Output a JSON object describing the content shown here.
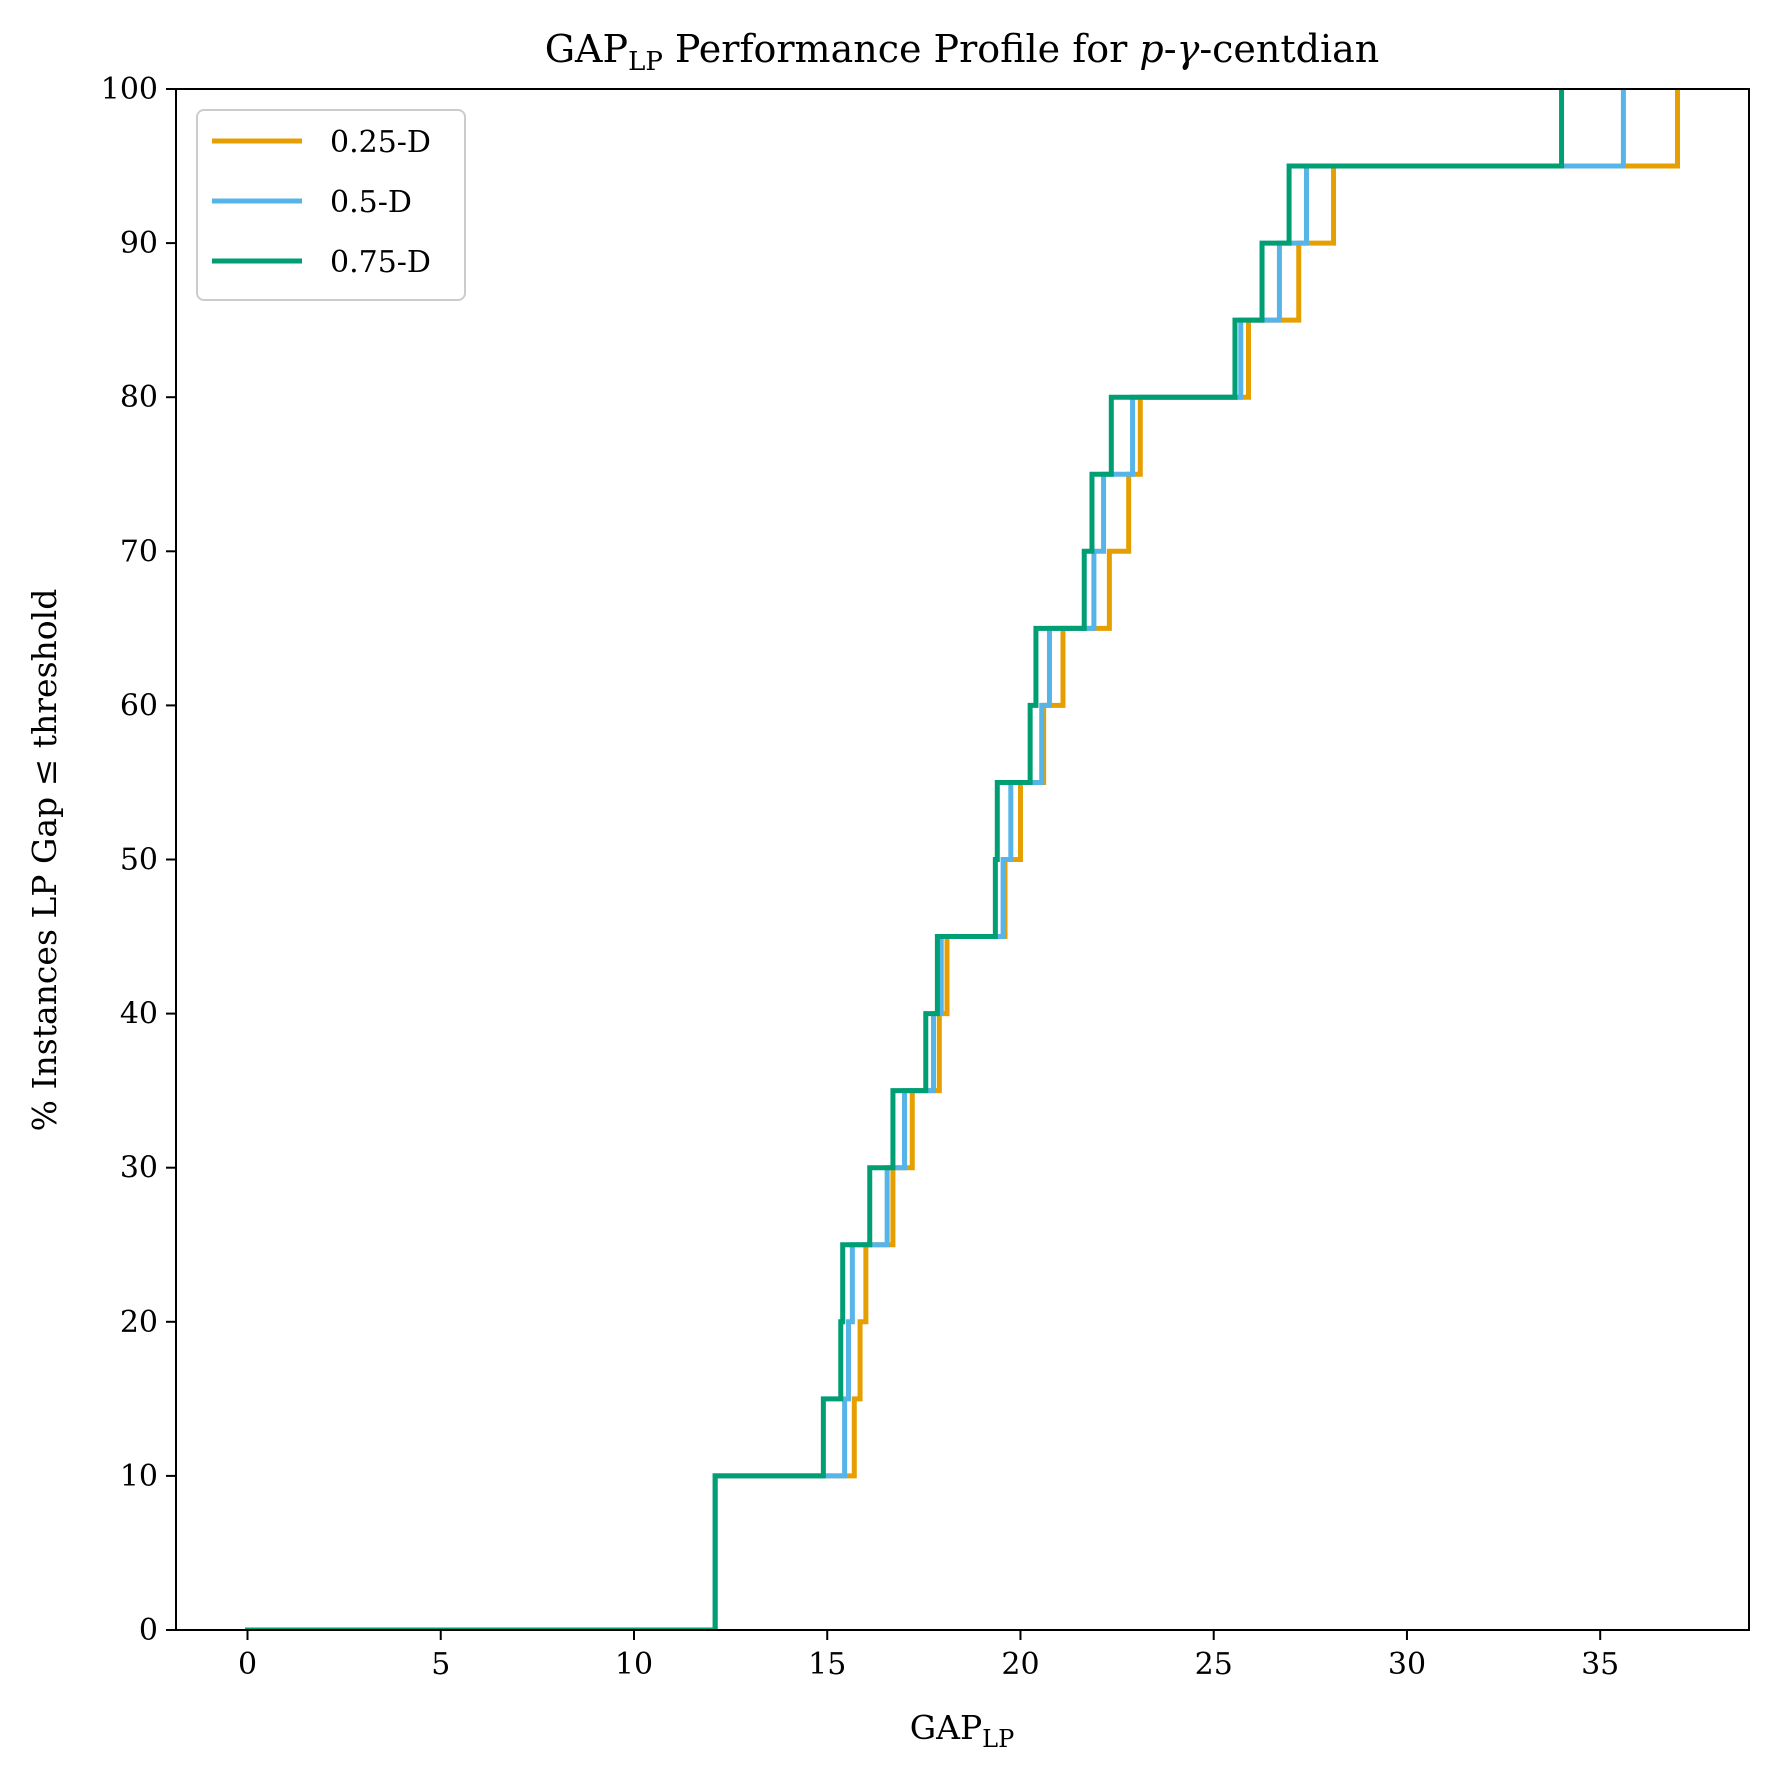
{
  "chart_data": {
    "type": "line",
    "step": "post",
    "title": {
      "prefix": "GAP",
      "prefix_sub": "LP",
      "middle": " Performance Profile for ",
      "italic1": "p",
      "dash": "-",
      "italic2": "γ",
      "suffix": "-centdian"
    },
    "xlabel": {
      "main": "GAP",
      "sub": "LP"
    },
    "ylabel": "% Instances LP Gap ≤ threshold",
    "xlim": [
      -1.85,
      38.85
    ],
    "ylim": [
      0,
      100
    ],
    "xticks": [
      0,
      5,
      10,
      15,
      20,
      25,
      30,
      35
    ],
    "yticks": [
      0,
      10,
      20,
      30,
      40,
      50,
      60,
      70,
      80,
      90,
      100
    ],
    "legend_position": "upper-left",
    "grid": false,
    "series": [
      {
        "name": "0.25-D",
        "color": "#E69F00",
        "x": [
          0,
          12.1,
          12.1,
          15.7,
          15.7,
          15.85,
          15.85,
          16.0,
          16.0,
          16.7,
          16.7,
          17.2,
          17.2,
          17.9,
          17.9,
          18.1,
          18.1,
          19.6,
          19.6,
          20.0,
          20.0,
          20.6,
          20.6,
          21.1,
          21.1,
          22.3,
          22.3,
          22.8,
          22.8,
          23.1,
          23.1,
          25.9,
          25.9,
          27.2,
          27.2,
          28.1,
          28.1,
          37.0,
          37.0
        ],
        "y": [
          0,
          0,
          10,
          10,
          15,
          15,
          20,
          20,
          25,
          25,
          30,
          30,
          35,
          35,
          40,
          40,
          45,
          45,
          50,
          50,
          55,
          55,
          60,
          60,
          65,
          65,
          70,
          70,
          75,
          75,
          80,
          80,
          85,
          85,
          90,
          90,
          95,
          95,
          100
        ]
      },
      {
        "name": "0.5-D",
        "color": "#56B4E9",
        "x": [
          0,
          12.1,
          12.1,
          15.45,
          15.45,
          15.55,
          15.55,
          15.65,
          15.65,
          16.55,
          16.55,
          17.0,
          17.0,
          17.75,
          17.75,
          17.95,
          17.95,
          19.55,
          19.55,
          19.75,
          19.75,
          20.55,
          20.55,
          20.75,
          20.75,
          21.9,
          21.9,
          22.15,
          22.15,
          22.9,
          22.9,
          25.7,
          25.7,
          26.7,
          26.7,
          27.4,
          27.4,
          35.6,
          35.6
        ],
        "y": [
          0,
          0,
          10,
          10,
          15,
          15,
          20,
          20,
          25,
          25,
          30,
          30,
          35,
          35,
          40,
          40,
          45,
          45,
          50,
          50,
          55,
          55,
          60,
          60,
          65,
          65,
          70,
          70,
          75,
          75,
          80,
          80,
          85,
          85,
          90,
          90,
          95,
          95,
          100
        ]
      },
      {
        "name": "0.75-D",
        "color": "#009E73",
        "x": [
          0,
          12.1,
          12.1,
          14.9,
          14.9,
          15.35,
          15.35,
          15.4,
          15.4,
          16.1,
          16.1,
          16.7,
          16.7,
          17.55,
          17.55,
          17.85,
          17.85,
          19.35,
          19.35,
          19.4,
          19.4,
          20.25,
          20.25,
          20.4,
          20.4,
          21.65,
          21.65,
          21.85,
          21.85,
          22.35,
          22.35,
          25.55,
          25.55,
          26.25,
          26.25,
          26.95,
          26.95,
          34.0,
          34.0
        ],
        "y": [
          0,
          0,
          10,
          10,
          15,
          15,
          20,
          20,
          25,
          25,
          30,
          30,
          35,
          35,
          40,
          40,
          45,
          45,
          50,
          50,
          55,
          55,
          60,
          60,
          65,
          65,
          70,
          70,
          75,
          75,
          80,
          80,
          85,
          85,
          90,
          90,
          95,
          95,
          100
        ]
      }
    ]
  }
}
